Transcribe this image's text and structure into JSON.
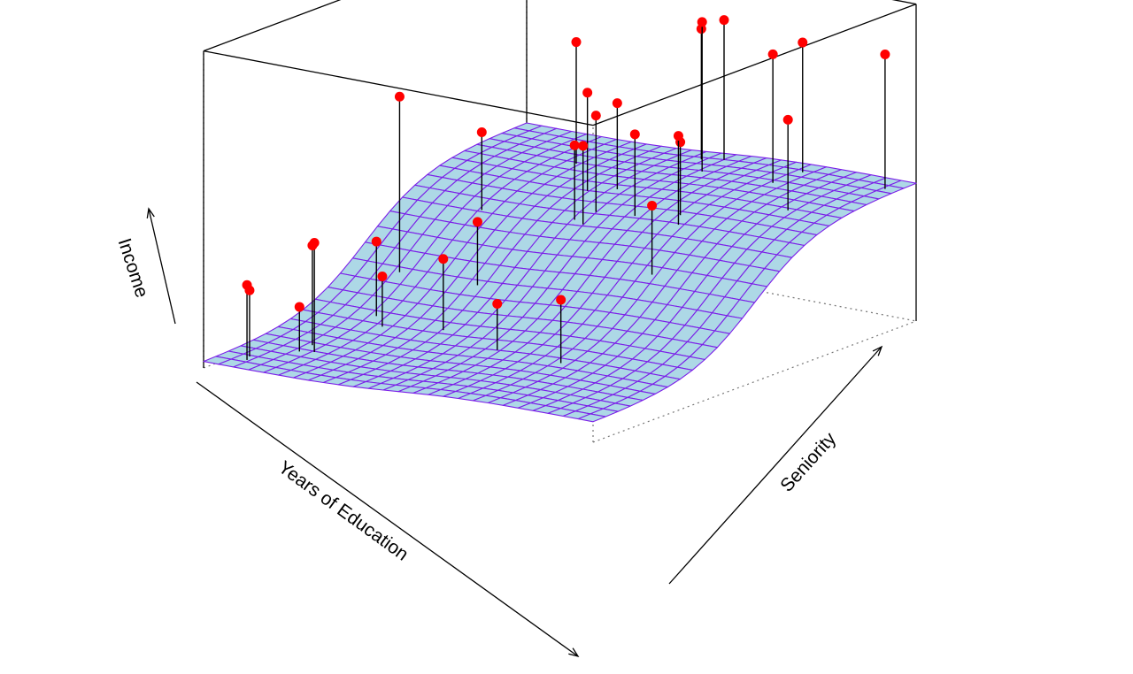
{
  "chart_data": {
    "type": "surface3d",
    "title": "",
    "xlabel": "Years of Education",
    "ylabel": "Seniority",
    "zlabel": "Income",
    "grid": false,
    "colors": {
      "surface_fill": "#add8e6",
      "mesh_line": "#7b1fe8",
      "point": "#ff0000",
      "residual": "#000000",
      "box": "#000000"
    },
    "points": [
      {
        "education": 0.07,
        "seniority": 0.05,
        "income": 0.29
      },
      {
        "education": 0.06,
        "seniority": 0.07,
        "income": 0.26
      },
      {
        "education": 0.13,
        "seniority": 0.14,
        "income": 0.19
      },
      {
        "education": 0.16,
        "seniority": 0.15,
        "income": 0.42
      },
      {
        "education": 0.21,
        "seniority": 0.3,
        "income": 0.25
      },
      {
        "education": 0.13,
        "seniority": 0.18,
        "income": 0.39
      },
      {
        "education": 0.17,
        "seniority": 0.33,
        "income": 0.35
      },
      {
        "education": 0.35,
        "seniority": 0.32,
        "income": 0.34
      },
      {
        "education": 0.33,
        "seniority": 0.45,
        "income": 0.41
      },
      {
        "education": 0.53,
        "seniority": 0.27,
        "income": 0.25
      },
      {
        "education": 0.71,
        "seniority": 0.25,
        "income": 0.32
      },
      {
        "education": 0.13,
        "seniority": 0.45,
        "income": 0.8
      },
      {
        "education": 0.2,
        "seniority": 0.62,
        "income": 0.62
      },
      {
        "education": 0.26,
        "seniority": 0.84,
        "income": 0.86
      },
      {
        "education": 0.38,
        "seniority": 0.73,
        "income": 0.76
      },
      {
        "education": 0.46,
        "seniority": 0.66,
        "income": 0.73
      },
      {
        "education": 0.44,
        "seniority": 0.75,
        "income": 0.73
      },
      {
        "education": 0.43,
        "seniority": 0.63,
        "income": 0.63
      },
      {
        "education": 0.46,
        "seniority": 0.62,
        "income": 0.64
      },
      {
        "education": 0.56,
        "seniority": 0.66,
        "income": 0.69
      },
      {
        "education": 0.72,
        "seniority": 0.52,
        "income": 0.54
      },
      {
        "education": 0.66,
        "seniority": 0.68,
        "income": 0.68
      },
      {
        "education": 0.68,
        "seniority": 0.65,
        "income": 0.72
      },
      {
        "education": 0.49,
        "seniority": 0.95,
        "income": 0.92
      },
      {
        "education": 0.54,
        "seniority": 0.96,
        "income": 0.96
      },
      {
        "education": 0.55,
        "seniority": 0.88,
        "income": 0.99
      },
      {
        "education": 0.74,
        "seniority": 0.87,
        "income": 0.93
      },
      {
        "education": 0.75,
        "seniority": 0.95,
        "income": 0.94
      },
      {
        "education": 0.87,
        "seniority": 0.76,
        "income": 0.78
      },
      {
        "education": 0.97,
        "seniority": 0.94,
        "income": 0.96
      }
    ]
  }
}
